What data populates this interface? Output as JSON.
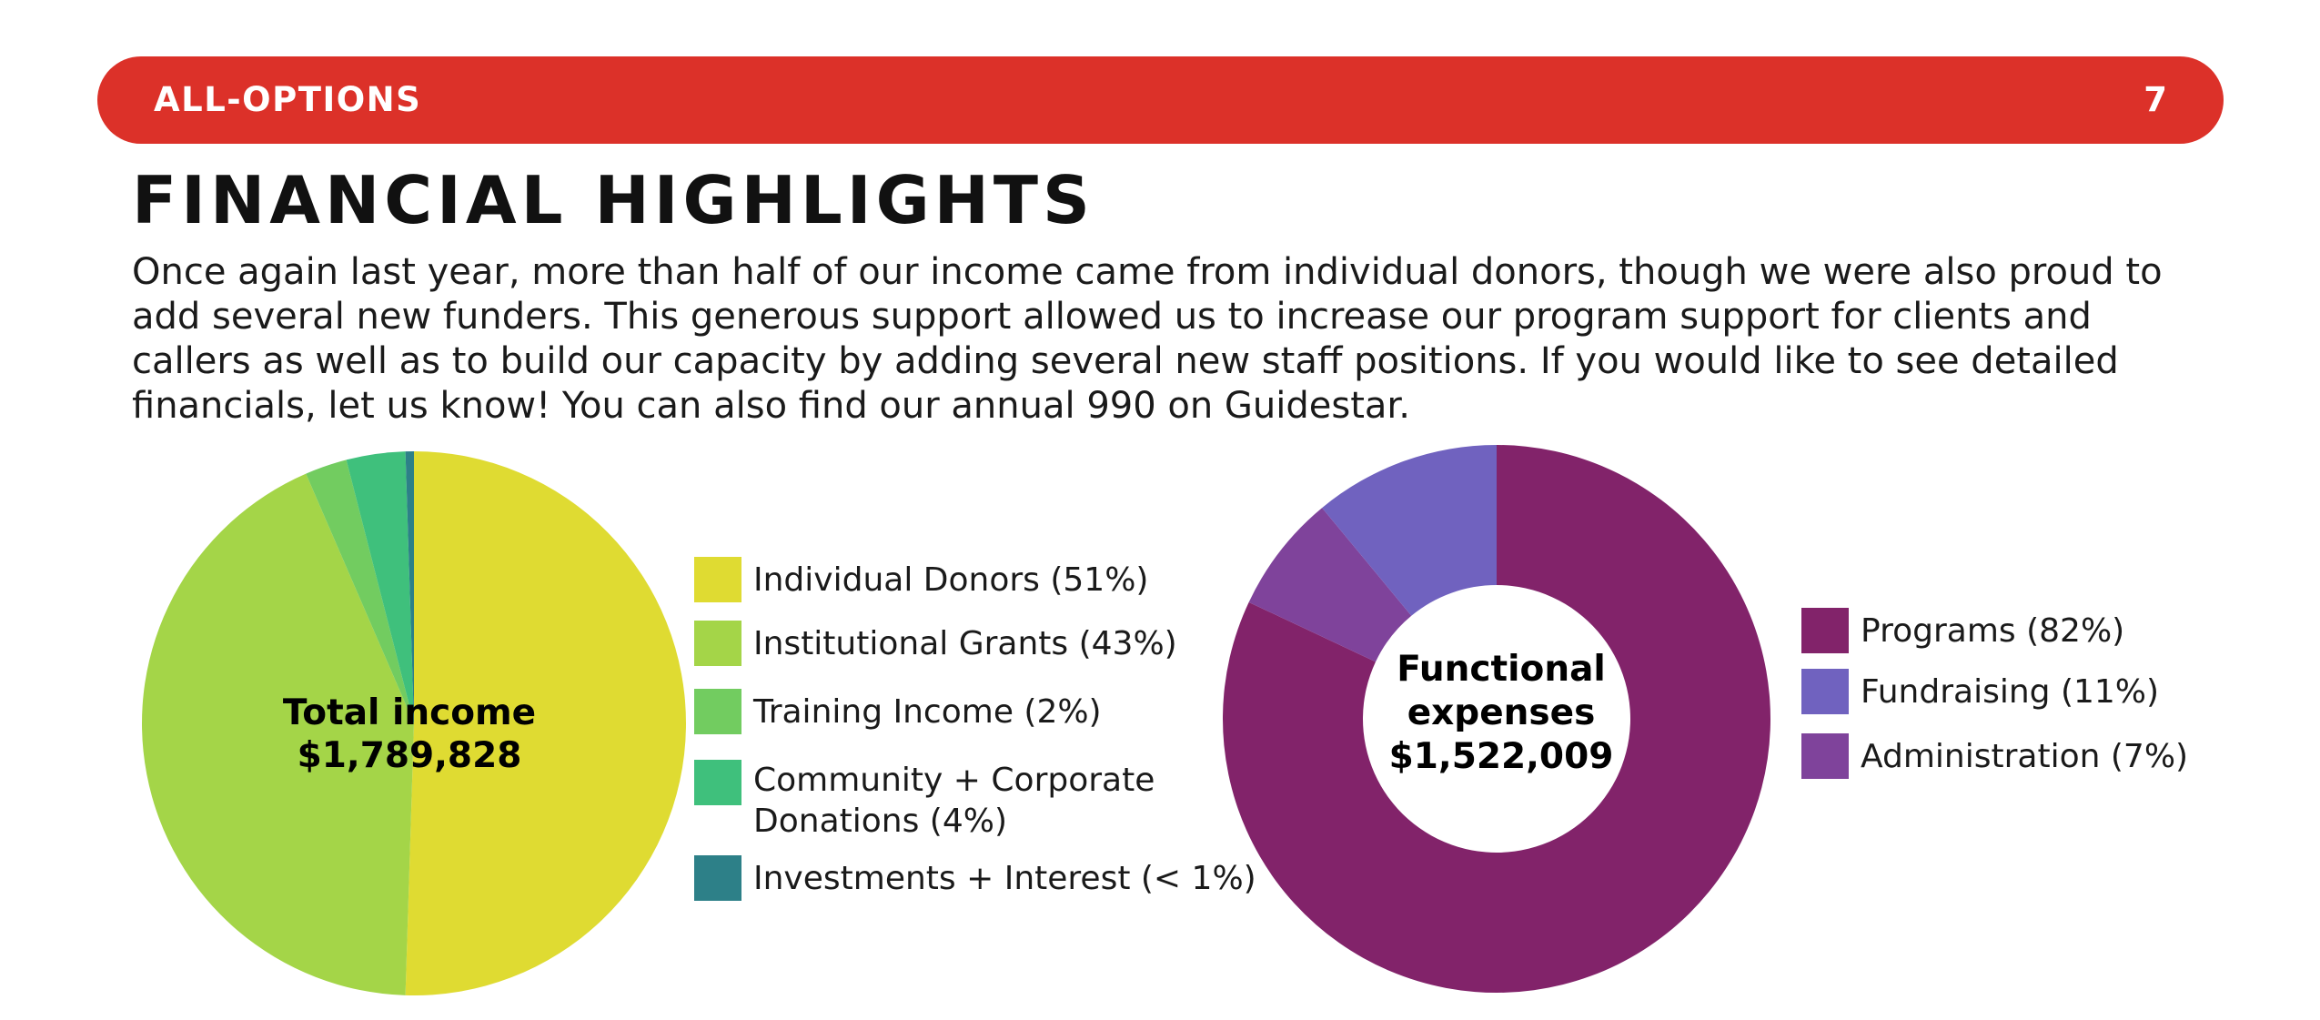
{
  "header": {
    "left": "ALL-OPTIONS",
    "right": "7"
  },
  "title": "FINANCIAL HIGHLIGHTS",
  "intro": "Once again last year, more than half of our income came from individual donors, though we were also proud to add several new funders. This generous support allowed us to increase our program support for clients and callers as well as to build our capacity by adding several new staff positions. If you would like to see detailed financials, let us know! You can also find our annual 990 on Guidestar.",
  "colors": {
    "header": "#dc3129"
  },
  "chart_data": [
    {
      "type": "pie",
      "center_label": [
        "Total income",
        "$1,789,828"
      ],
      "categories": [
        "Individual Donors (51%)",
        "Institutional Grants (43%)",
        "Training Income (2%)",
        "Community + Corporate Donations (4%)",
        "Investments + Interest (< 1%)"
      ],
      "legend_lines": [
        [
          "Individual Donors (51%)"
        ],
        [
          "Institutional Grants (43%)"
        ],
        [
          "Training Income (2%)"
        ],
        [
          "Community + Corporate",
          "Donations (4%)"
        ],
        [
          "Investments + Interest (< 1%)"
        ]
      ],
      "values": [
        50.5,
        43.0,
        2.5,
        3.5,
        0.5
      ],
      "colors": [
        "#dfdb32",
        "#a4d548",
        "#72cc60",
        "#3fc07c",
        "#2d8088"
      ],
      "legend_placement": "right"
    },
    {
      "type": "pie",
      "donut": true,
      "center_label": [
        "Functional",
        "expenses",
        "$1,522,009"
      ],
      "categories": [
        "Programs (82%)",
        "Fundraising (11%)",
        "Administration (7%)"
      ],
      "values": [
        82,
        11,
        7
      ],
      "slice_order": [
        0,
        2,
        1
      ],
      "colors": [
        "#82236a",
        "#7062bf",
        "#7f439b"
      ],
      "legend_placement": "right"
    }
  ]
}
